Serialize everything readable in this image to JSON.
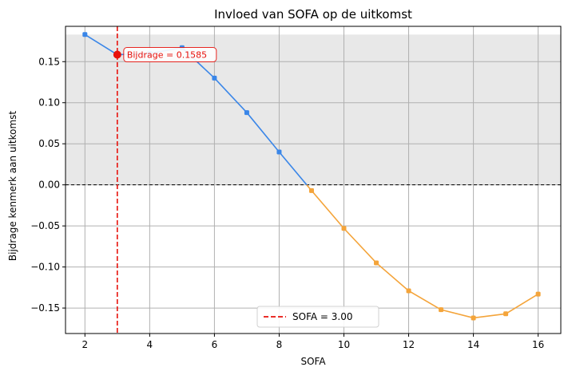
{
  "chart_data": {
    "type": "line",
    "title": "Invloed van SOFA op de uitkomst",
    "xlabel": "SOFA",
    "ylabel": "Bijdrage kenmerk aan uitkomst",
    "xlim": [
      1.4,
      16.7
    ],
    "ylim": [
      -0.181,
      0.193
    ],
    "xticks": [
      2,
      4,
      6,
      8,
      10,
      12,
      14,
      16
    ],
    "yticks": [
      -0.15,
      -0.1,
      -0.05,
      0.0,
      0.05,
      0.1,
      0.15
    ],
    "ytick_labels": [
      "−0.15",
      "−0.10",
      "−0.05",
      "0.00",
      "0.05",
      "0.10",
      "0.15"
    ],
    "grid": true,
    "shaded_region": {
      "y_from": 0.0,
      "y_to": 0.183,
      "color": "#e8e8e8"
    },
    "zero_line": {
      "y": 0.0,
      "color": "#000000",
      "style": "dashed"
    },
    "x": [
      2,
      3,
      4,
      5,
      6,
      7,
      8,
      9,
      10,
      11,
      12,
      13,
      14,
      15,
      16
    ],
    "y": [
      0.183,
      0.1585,
      0.16,
      0.167,
      0.13,
      0.088,
      0.04,
      -0.007,
      -0.053,
      -0.095,
      -0.129,
      -0.152,
      -0.162,
      -0.157,
      -0.133
    ],
    "positive_color": "#3a86e8",
    "negative_color": "#f4a43a",
    "marker_line": {
      "x": 3.0,
      "color": "#e8120c",
      "label": "SOFA = 3.00"
    },
    "highlight_point": {
      "x": 3.0,
      "y": 0.1585,
      "label": "Bijdrage = 0.1585",
      "color": "#e8120c"
    },
    "legend": {
      "position": "bottom-center"
    }
  }
}
